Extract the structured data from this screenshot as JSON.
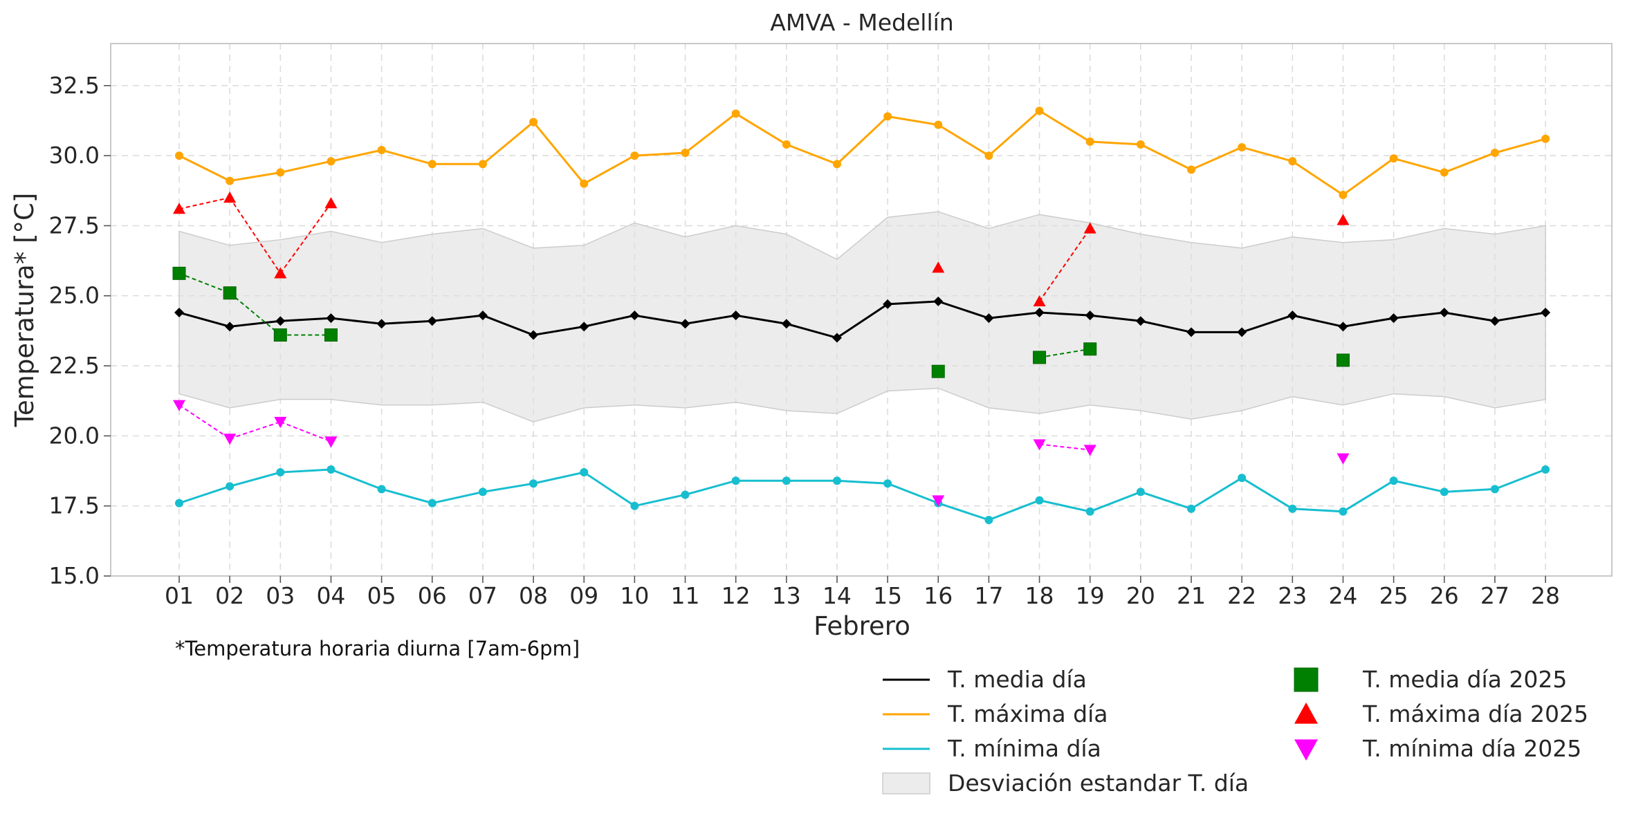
{
  "chart_data": {
    "type": "line",
    "title": "AMVA - Medellín",
    "xlabel": "Febrero",
    "ylabel": "Temperatura* [°C]",
    "note": "*Temperatura horaria diurna [7am-6pm]",
    "ylim": [
      15.0,
      34.0
    ],
    "yticks": [
      "15.0",
      "17.5",
      "20.0",
      "22.5",
      "25.0",
      "27.5",
      "30.0",
      "32.5"
    ],
    "categories": [
      "01",
      "02",
      "03",
      "04",
      "05",
      "06",
      "07",
      "08",
      "09",
      "10",
      "11",
      "12",
      "13",
      "14",
      "15",
      "16",
      "17",
      "18",
      "19",
      "20",
      "21",
      "22",
      "23",
      "24",
      "25",
      "26",
      "27",
      "28"
    ],
    "grid": true,
    "legend_position": "bottom-right",
    "band": {
      "name": "Desviación estandar T. día",
      "color": "#d9d9d9",
      "upper": [
        27.3,
        26.8,
        27.0,
        27.3,
        26.9,
        27.2,
        27.4,
        26.7,
        26.8,
        27.6,
        27.1,
        27.5,
        27.2,
        26.3,
        27.8,
        28.0,
        27.4,
        27.9,
        27.6,
        27.2,
        26.9,
        26.7,
        27.1,
        26.9,
        27.0,
        27.4,
        27.2,
        27.5
      ],
      "lower": [
        21.5,
        21.0,
        21.3,
        21.3,
        21.1,
        21.1,
        21.2,
        20.5,
        21.0,
        21.1,
        21.0,
        21.2,
        20.9,
        20.8,
        21.6,
        21.7,
        21.0,
        20.8,
        21.1,
        20.9,
        20.6,
        20.9,
        21.4,
        21.1,
        21.5,
        21.4,
        21.0,
        21.3
      ]
    },
    "series": [
      {
        "name": "T. media día",
        "color": "#000000",
        "marker": "diamond",
        "values": [
          24.4,
          23.9,
          24.1,
          24.2,
          24.0,
          24.1,
          24.3,
          23.6,
          23.9,
          24.3,
          24.0,
          24.3,
          24.0,
          23.5,
          24.7,
          24.8,
          24.2,
          24.4,
          24.3,
          24.1,
          23.7,
          23.7,
          24.3,
          23.9,
          24.2,
          24.4,
          24.1,
          24.4
        ]
      },
      {
        "name": "T. máxima día",
        "color": "#ffa500",
        "marker": "circle",
        "values": [
          30.0,
          29.1,
          29.4,
          29.8,
          30.2,
          29.7,
          29.7,
          31.2,
          29.0,
          30.0,
          30.1,
          31.5,
          30.4,
          29.7,
          31.4,
          31.1,
          30.0,
          31.6,
          30.5,
          30.4,
          29.5,
          30.3,
          29.8,
          28.6,
          29.9,
          29.4,
          30.1,
          30.6
        ]
      },
      {
        "name": "T. mínima día",
        "color": "#17becf",
        "marker": "circle",
        "values": [
          17.6,
          18.2,
          18.7,
          18.8,
          18.1,
          17.6,
          18.0,
          18.3,
          18.7,
          17.5,
          17.9,
          18.4,
          18.4,
          18.4,
          18.3,
          17.6,
          17.0,
          17.7,
          17.3,
          18.0,
          17.4,
          18.5,
          17.4,
          17.3,
          18.4,
          18.0,
          18.1,
          18.8
        ]
      }
    ],
    "series_2025": [
      {
        "name": "T. media día 2025",
        "color": "#008000",
        "marker": "square",
        "values": [
          25.8,
          25.1,
          23.6,
          23.6,
          null,
          null,
          null,
          null,
          null,
          null,
          null,
          null,
          null,
          null,
          null,
          22.3,
          null,
          22.8,
          23.1,
          null,
          null,
          null,
          null,
          22.7,
          null,
          null,
          null,
          null
        ]
      },
      {
        "name": "T. máxima día 2025",
        "color": "#ff0000",
        "marker": "triangle-up",
        "values": [
          28.1,
          28.5,
          25.8,
          28.3,
          null,
          null,
          null,
          null,
          null,
          null,
          null,
          null,
          null,
          null,
          null,
          26.0,
          null,
          24.8,
          27.4,
          null,
          null,
          null,
          null,
          27.7,
          null,
          null,
          null,
          null
        ]
      },
      {
        "name": "T. mínima día 2025",
        "color": "#ff00ff",
        "marker": "triangle-down",
        "values": [
          21.1,
          19.9,
          20.5,
          19.8,
          null,
          null,
          null,
          null,
          null,
          null,
          null,
          null,
          null,
          null,
          null,
          17.7,
          null,
          19.7,
          19.5,
          null,
          null,
          null,
          null,
          19.2,
          null,
          null,
          null,
          null
        ]
      }
    ]
  }
}
